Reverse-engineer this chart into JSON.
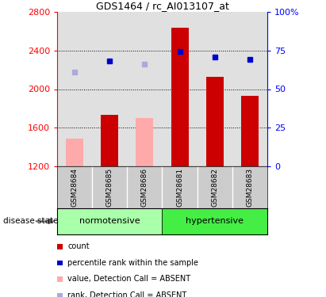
{
  "title": "GDS1464 / rc_AI013107_at",
  "samples": [
    "GSM28684",
    "GSM28685",
    "GSM28686",
    "GSM28681",
    "GSM28682",
    "GSM28683"
  ],
  "bar_values": [
    null,
    1730,
    null,
    2640,
    2130,
    1930
  ],
  "bar_absent_values": [
    1490,
    null,
    1700,
    null,
    null,
    null
  ],
  "rank_present": [
    null,
    2290,
    null,
    2390,
    2330,
    2310
  ],
  "rank_absent": [
    2180,
    null,
    2260,
    null,
    null,
    null
  ],
  "ylim_left": [
    1200,
    2800
  ],
  "ylim_right": [
    0,
    100
  ],
  "yticks_left": [
    1200,
    1600,
    2000,
    2400,
    2800
  ],
  "yticks_right": [
    0,
    25,
    50,
    75,
    100
  ],
  "bar_color_present": "#cc0000",
  "bar_color_absent": "#ffaaaa",
  "rank_color_present": "#0000cc",
  "rank_color_absent": "#aaaadd",
  "norm_color": "#aaffaa",
  "hyper_color": "#44ee44",
  "plot_bg": "#e0e0e0",
  "label_bg": "#cccccc",
  "grid_dotted_vals": [
    1600,
    2000,
    2400
  ],
  "legend_items": [
    [
      "#cc0000",
      "count"
    ],
    [
      "#0000cc",
      "percentile rank within the sample"
    ],
    [
      "#ffaaaa",
      "value, Detection Call = ABSENT"
    ],
    [
      "#aaaadd",
      "rank, Detection Call = ABSENT"
    ]
  ]
}
